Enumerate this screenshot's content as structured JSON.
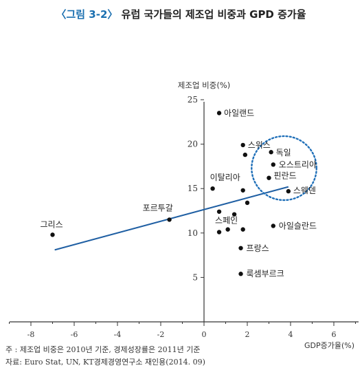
{
  "title": {
    "figure_label": "〈그림 3-2〉",
    "text": "유럽 국가들의 제조업 비중과 GPD 증가율"
  },
  "notes": {
    "note1": "주 : 제조업 비중은 2010년 기준, 경제성장률은 2011년 기준",
    "note2": "자료: Euro Stat, UN, KT경제경영연구소 재인용(2014. 09)"
  },
  "chart_data": {
    "type": "scatter",
    "ylabel": "제조업 비중(%)",
    "xlabel": "GDP증가율(%)",
    "xlim": [
      -9,
      7
    ],
    "ylim": [
      0,
      25
    ],
    "xticks": [
      -8,
      -6,
      -4,
      -2,
      0,
      2,
      4,
      6
    ],
    "yticks": [
      5,
      10,
      15,
      20,
      25
    ],
    "grid": false,
    "points": [
      {
        "x": 0.7,
        "y": 23.5,
        "label": "아일랜드"
      },
      {
        "x": 1.8,
        "y": 19.9,
        "label": "스위스"
      },
      {
        "x": 1.9,
        "y": 18.8,
        "label": ""
      },
      {
        "x": 3.1,
        "y": 19.1,
        "label": "독일"
      },
      {
        "x": 3.2,
        "y": 17.7,
        "label": "오스트리아"
      },
      {
        "x": 3.0,
        "y": 16.2,
        "label": "핀란드"
      },
      {
        "x": 0.4,
        "y": 15.0,
        "label": "이탈리아"
      },
      {
        "x": 1.8,
        "y": 14.8,
        "label": ""
      },
      {
        "x": 3.9,
        "y": 14.7,
        "label": "스웨덴"
      },
      {
        "x": 2.0,
        "y": 13.4,
        "label": ""
      },
      {
        "x": 0.7,
        "y": 12.4,
        "label": ""
      },
      {
        "x": 1.4,
        "y": 12.1,
        "label": ""
      },
      {
        "x": 0.7,
        "y": 10.1,
        "label": "스페인"
      },
      {
        "x": 1.1,
        "y": 10.4,
        "label": ""
      },
      {
        "x": 1.8,
        "y": 10.4,
        "label": ""
      },
      {
        "x": 3.2,
        "y": 10.8,
        "label": "아일슬란드"
      },
      {
        "x": 1.7,
        "y": 8.3,
        "label": "프랑스"
      },
      {
        "x": 1.7,
        "y": 5.4,
        "label": "룩셈부르크"
      },
      {
        "x": -1.6,
        "y": 11.5,
        "label": "포르투갈"
      },
      {
        "x": -7.0,
        "y": 9.8,
        "label": "그리스"
      }
    ],
    "trendline": {
      "x": [
        -6.9,
        3.9
      ],
      "y": [
        8.1,
        15.2
      ]
    },
    "highlight": {
      "cx": 3.7,
      "cy": 17.3,
      "rx": 1.5,
      "ry": 3.6
    }
  }
}
